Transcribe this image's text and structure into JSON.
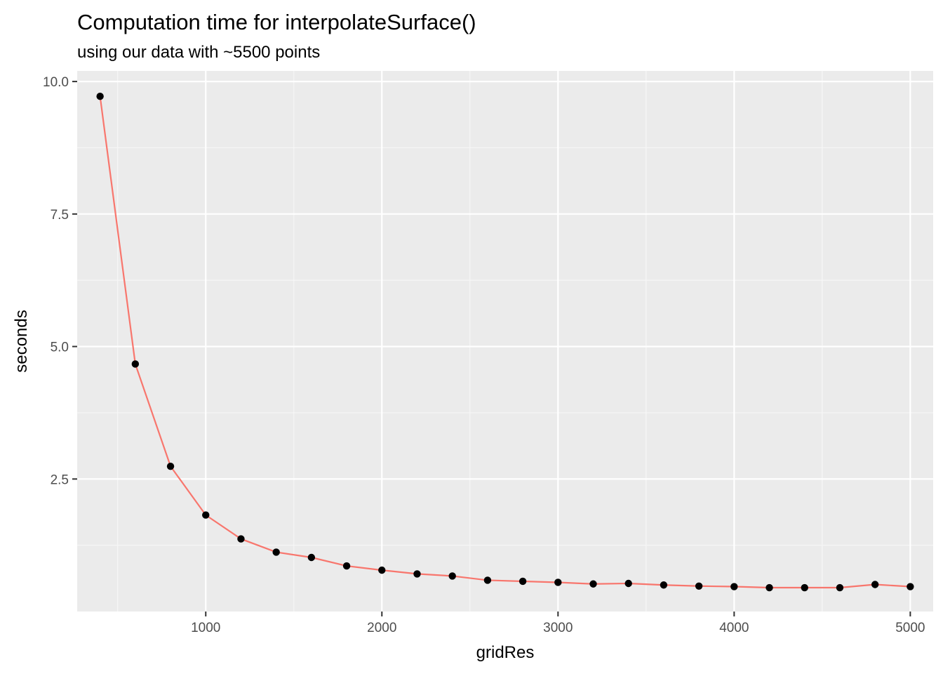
{
  "chart_data": {
    "type": "line",
    "title": "Computation time for interpolateSurface()",
    "subtitle": "using our data with ~5500 points",
    "xlabel": "gridRes",
    "ylabel": "seconds",
    "xlim": [
      270,
      5130
    ],
    "ylim": [
      0.0,
      10.2
    ],
    "x_ticks": [
      1000,
      2000,
      3000,
      4000,
      5000
    ],
    "y_ticks": [
      2.5,
      5.0,
      7.5,
      10.0
    ],
    "x_tick_labels": [
      "1000",
      "2000",
      "3000",
      "4000",
      "5000"
    ],
    "y_tick_labels": [
      "2.5",
      "5.0",
      "7.5",
      "10.0"
    ],
    "grid": true,
    "legend": "none",
    "series": [
      {
        "x": [
          400,
          600,
          800,
          1000,
          1200,
          1400,
          1600,
          1800,
          2000,
          2200,
          2400,
          2600,
          2800,
          3000,
          3200,
          3400,
          3600,
          3800,
          4000,
          4200,
          4400,
          4600,
          4800,
          5000
        ],
        "y": [
          9.72,
          4.67,
          2.74,
          1.82,
          1.37,
          1.12,
          1.02,
          0.86,
          0.78,
          0.71,
          0.67,
          0.59,
          0.57,
          0.55,
          0.52,
          0.53,
          0.5,
          0.48,
          0.47,
          0.45,
          0.45,
          0.45,
          0.51,
          0.47
        ]
      }
    ],
    "colors": {
      "line": "#f8766d",
      "point": "#000000",
      "panel_bg": "#ebebeb",
      "grid_major": "#ffffff",
      "grid_minor": "#f7f7f7"
    }
  }
}
